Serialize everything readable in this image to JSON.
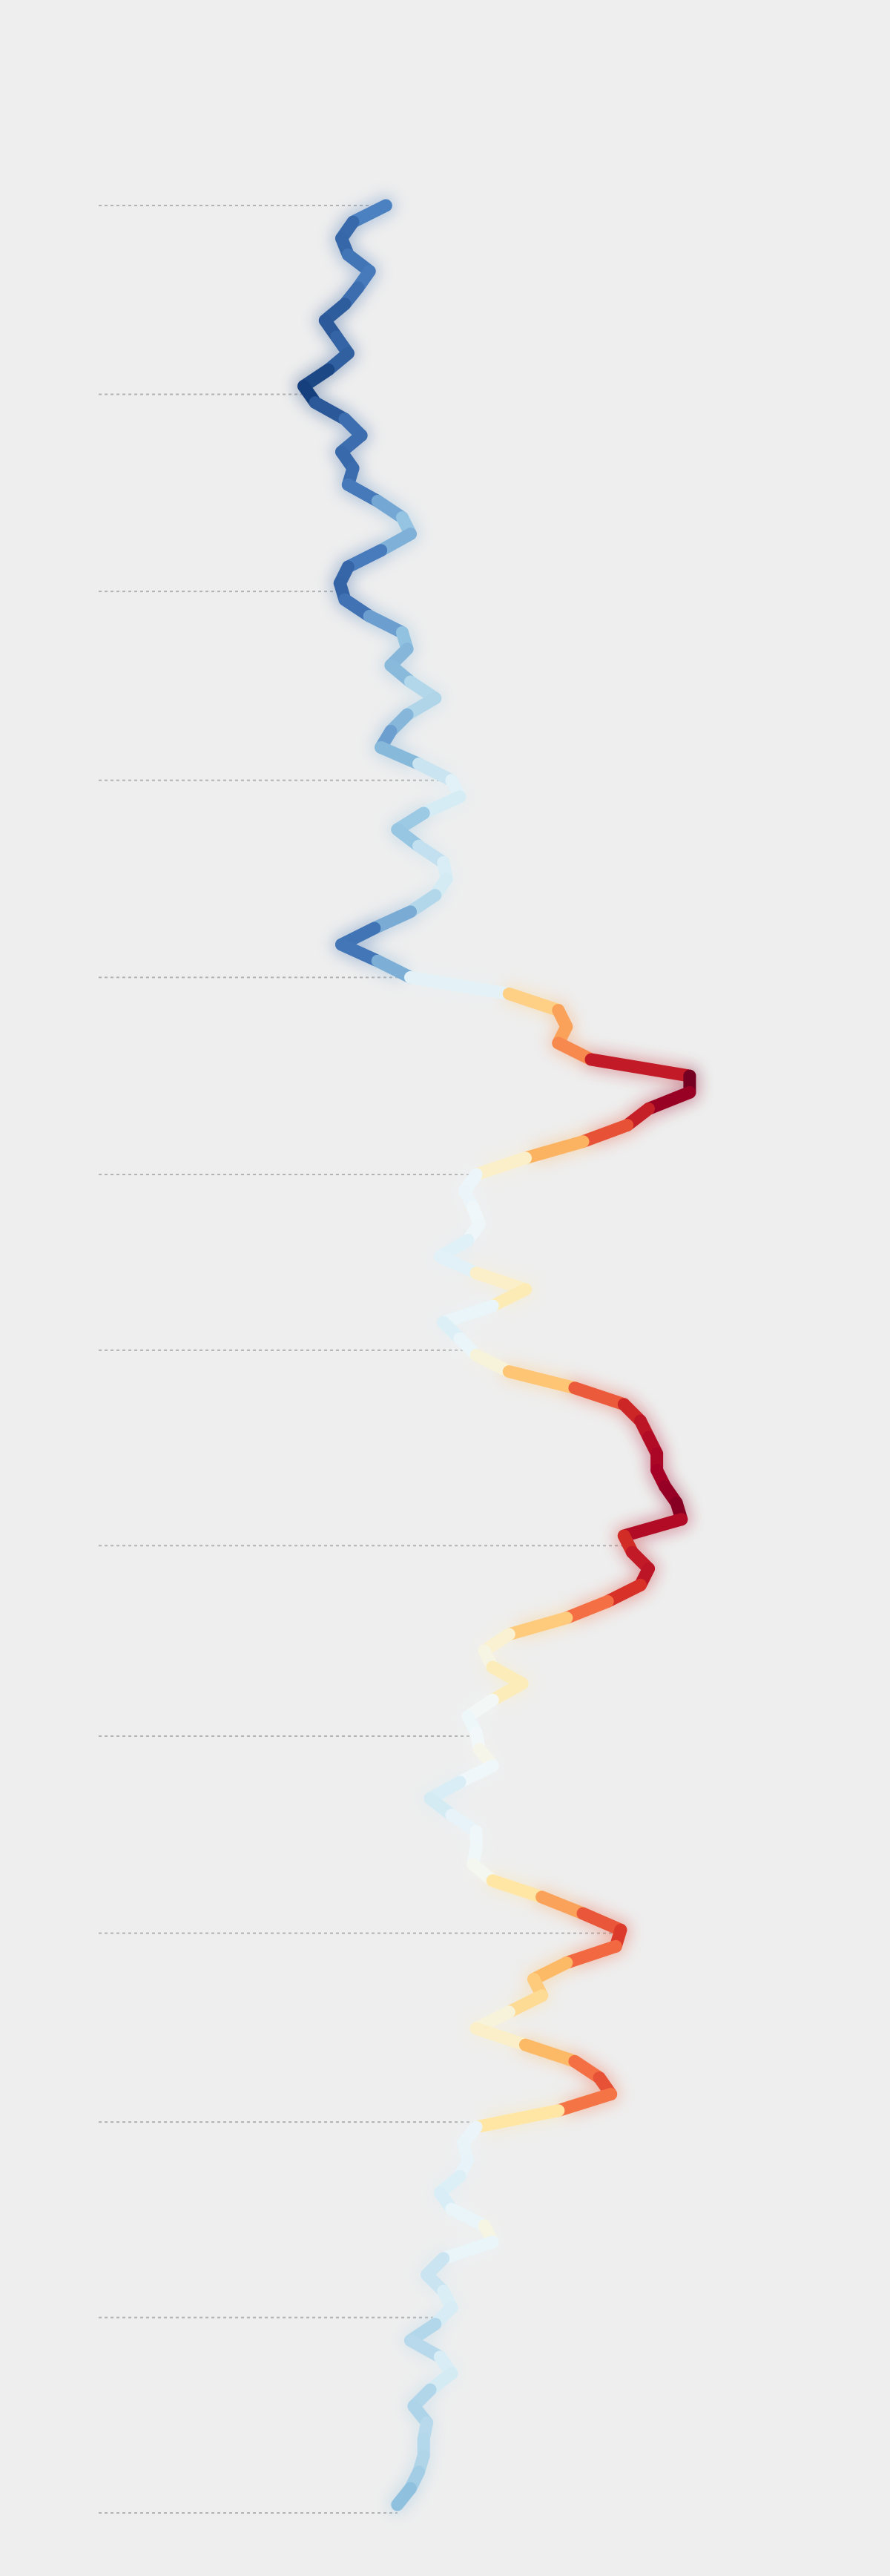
{
  "chart_data": {
    "type": "line",
    "orientation": "vertical",
    "values": [
      -0.55,
      -0.75,
      -0.82,
      -0.78,
      -0.65,
      -0.72,
      -0.8,
      -0.92,
      -0.85,
      -0.78,
      -0.9,
      -1.05,
      -0.98,
      -0.8,
      -0.7,
      -0.82,
      -0.75,
      -0.78,
      -0.6,
      -0.45,
      -0.4,
      -0.58,
      -0.78,
      -0.83,
      -0.8,
      -0.65,
      -0.45,
      -0.42,
      -0.52,
      -0.4,
      -0.25,
      -0.42,
      -0.52,
      -0.58,
      -0.35,
      -0.15,
      -0.1,
      -0.32,
      -0.48,
      -0.35,
      -0.2,
      -0.18,
      -0.25,
      -0.4,
      -0.62,
      -0.82,
      -0.6,
      -0.4,
      0.2,
      0.5,
      0.55,
      0.5,
      0.7,
      1.3,
      1.3,
      1.05,
      0.92,
      0.65,
      0.3,
      0.0,
      -0.07,
      -0.02,
      0.02,
      -0.05,
      -0.22,
      0.0,
      0.3,
      0.1,
      -0.2,
      -0.1,
      0.0,
      0.2,
      0.6,
      0.9,
      1.0,
      1.05,
      1.1,
      1.1,
      1.15,
      1.22,
      1.25,
      0.9,
      0.95,
      1.05,
      1.0,
      0.8,
      0.55,
      0.2,
      0.05,
      0.1,
      0.28,
      0.1,
      -0.05,
      0.0,
      0.02,
      0.1,
      -0.1,
      -0.28,
      -0.15,
      0.0,
      0.0,
      -0.02,
      0.1,
      0.4,
      0.65,
      0.88,
      0.85,
      0.55,
      0.35,
      0.4,
      0.2,
      0.0,
      0.3,
      0.6,
      0.75,
      0.82,
      0.5,
      0.0,
      -0.08,
      -0.05,
      -0.1,
      -0.22,
      -0.15,
      0.05,
      0.1,
      -0.2,
      -0.3,
      -0.2,
      -0.15,
      -0.25,
      -0.4,
      -0.22,
      -0.15,
      -0.28,
      -0.38,
      -0.3,
      -0.32,
      -0.32,
      -0.35,
      -0.4,
      -0.48
    ],
    "xlim": [
      -2.9,
      2.52
    ],
    "ylim": [
      0,
      140.5
    ],
    "yticks": [
      0,
      11.5,
      23.5,
      35,
      47,
      59,
      69.7,
      81.6,
      93.2,
      105.2,
      116.7,
      128.6,
      140.5
    ],
    "grid": true,
    "colors": [
      "#08306b",
      "#2c5a9b",
      "#4a7fc0",
      "#92c3e0",
      "#d6ecf5",
      "#f2f8fa",
      "#ffe9a8",
      "#fdb863",
      "#f46d43",
      "#d73027",
      "#a50026",
      "#67001f"
    ],
    "clim": [
      -1.1,
      1.35
    ]
  }
}
